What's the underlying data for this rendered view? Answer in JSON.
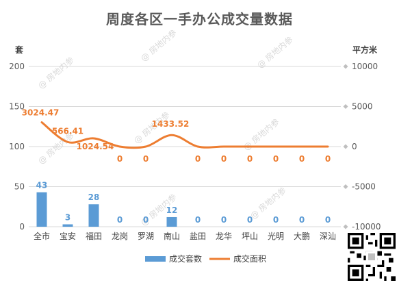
{
  "chart_data": {
    "type": "bar+line",
    "title": "周度各区一手办公成交量数据",
    "categories": [
      "全市",
      "宝安",
      "福田",
      "龙岗",
      "罗湖",
      "南山",
      "盐田",
      "龙华",
      "坪山",
      "光明",
      "大鹏",
      "深汕"
    ],
    "series": [
      {
        "name": "成交套数",
        "type": "bar",
        "axis": "left",
        "color": "#5b9bd5",
        "values": [
          43,
          3,
          28,
          0,
          0,
          12,
          0,
          0,
          0,
          0,
          0,
          0
        ],
        "labels": [
          "43",
          "3",
          "28",
          "0",
          "0",
          "12",
          "0",
          "0",
          "0",
          "0",
          "0",
          "0"
        ]
      },
      {
        "name": "成交面积",
        "type": "line",
        "axis": "right",
        "color": "#ed7d31",
        "smooth": true,
        "values": [
          3024.47,
          566.41,
          1024.54,
          0,
          0,
          1433.52,
          0,
          0,
          0,
          0,
          0,
          0
        ],
        "labels": [
          "3024.47",
          "566.41",
          "1024.54",
          "0",
          "0",
          "1433.52",
          "0",
          "0",
          "0",
          "0",
          "0",
          "0"
        ]
      }
    ],
    "left_axis": {
      "unit": "套",
      "ylim": [
        0,
        200
      ],
      "ticks": [
        "0",
        "50",
        "100",
        "150",
        "200"
      ]
    },
    "right_axis": {
      "unit": "平方米",
      "ylim": [
        -10000,
        10000
      ],
      "ticks": [
        "-10000",
        "-5000",
        "0",
        "5000",
        "10000"
      ]
    },
    "legend": {
      "position": "bottom",
      "items": [
        "成交套数",
        "成交面积"
      ]
    },
    "grid": true
  },
  "watermark": {
    "text": "房地内参"
  }
}
